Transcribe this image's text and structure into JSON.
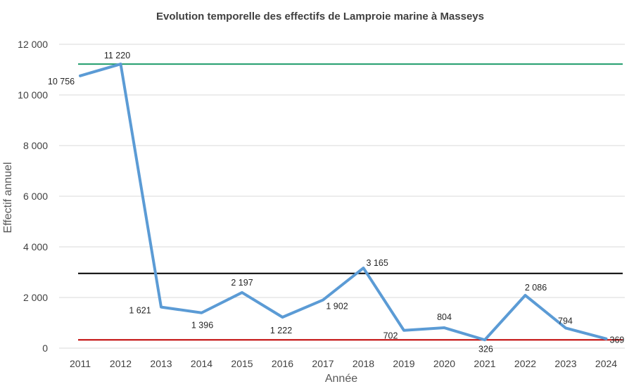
{
  "chart_data": {
    "type": "line",
    "title": "Evolution temporelle des effectifs de Lamproie marine à Masseys",
    "xlabel": "Année",
    "ylabel": "Effectif annuel",
    "categories": [
      "2011",
      "2012",
      "2013",
      "2014",
      "2015",
      "2016",
      "2017",
      "2018",
      "2019",
      "2020",
      "2021",
      "2022",
      "2023",
      "2024"
    ],
    "series": [
      {
        "values": [
          10756,
          11220,
          1621,
          1396,
          2197,
          1222,
          1902,
          3165,
          702,
          804,
          326,
          2086,
          794,
          369
        ],
        "labels": [
          "10 756",
          "11 220",
          "1 621",
          "1 396",
          "2 197",
          "1 222",
          "1 902",
          "3 165",
          "702",
          "804",
          "326",
          "2 086",
          "794",
          "369"
        ],
        "color": "#5b9bd5"
      }
    ],
    "reference_lines": [
      {
        "value": 11220,
        "color": "#1f9d6b"
      },
      {
        "value": 2950,
        "color": "#000000"
      },
      {
        "value": 326,
        "color": "#c00000"
      }
    ],
    "ylim": [
      0,
      12000
    ],
    "yticks": [
      0,
      2000,
      4000,
      6000,
      8000,
      10000,
      12000
    ],
    "ytick_labels": [
      "0",
      "2 000",
      "4 000",
      "6 000",
      "8 000",
      "10 000",
      "12 000"
    ],
    "grid": true,
    "legend": "none",
    "gridline_color": "#d9d9d9"
  }
}
